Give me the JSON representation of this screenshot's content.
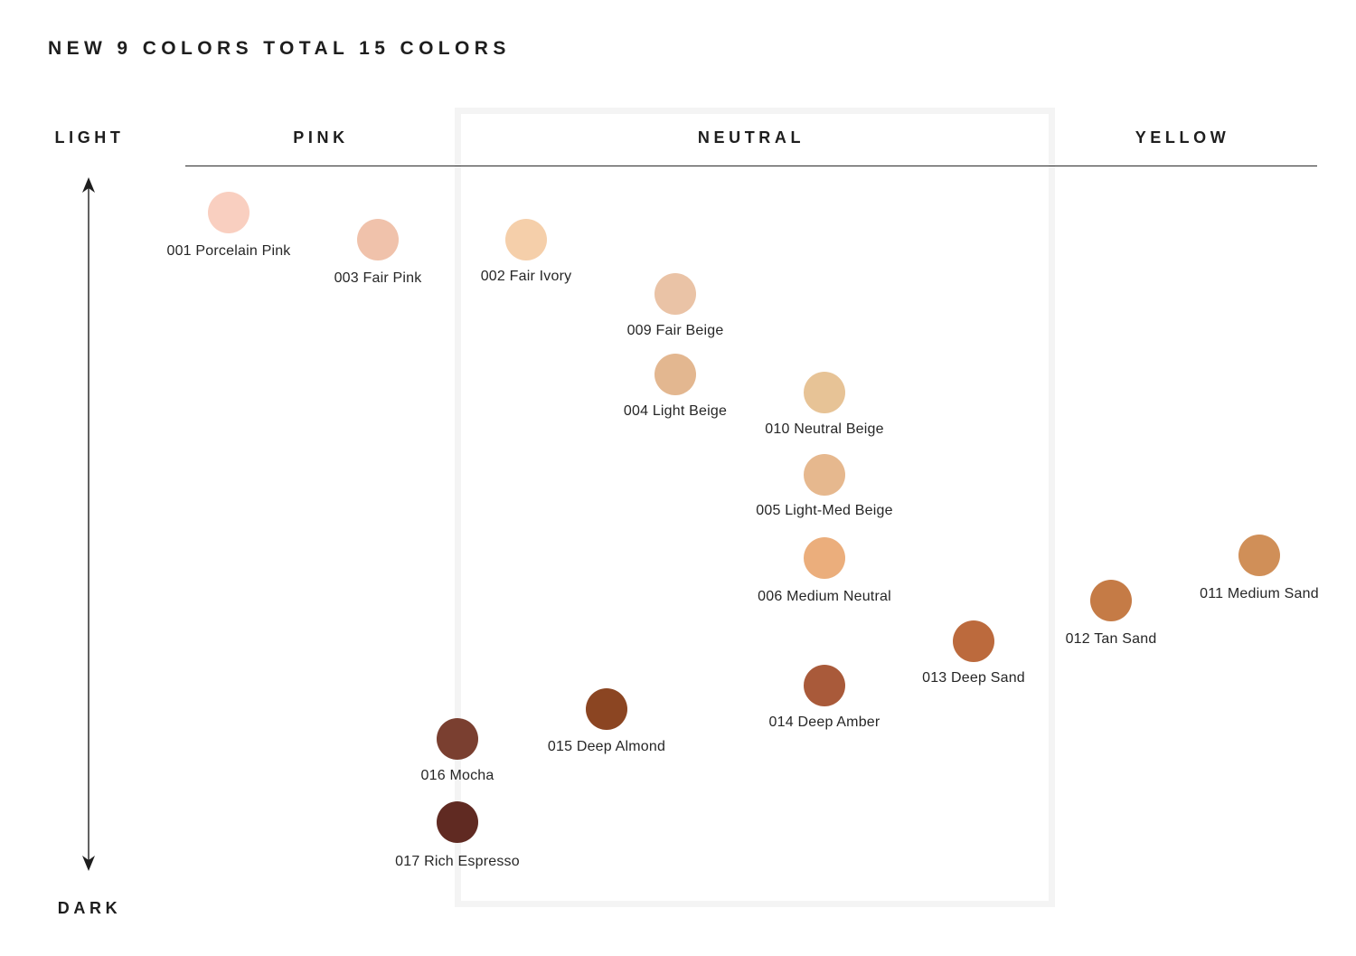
{
  "headline": "NEW 9 COLORS TOTAL 15 COLORS",
  "axis": {
    "top_label": "LIGHT",
    "bottom_label": "DARK"
  },
  "columns": {
    "pink": "PINK",
    "neutral": "NEUTRAL",
    "yellow": "YELLOW"
  },
  "shades": [
    {
      "label": "001 Porcelain Pink",
      "color": "#f9cfc0"
    },
    {
      "label": "003 Fair Pink",
      "color": "#f0c2ab"
    },
    {
      "label": "002 Fair Ivory",
      "color": "#f5cfaa"
    },
    {
      "label": "009 Fair Beige",
      "color": "#eac3a6"
    },
    {
      "label": "004 Light Beige",
      "color": "#e3b790"
    },
    {
      "label": "010 Neutral Beige",
      "color": "#e7c396"
    },
    {
      "label": "005 Light-Med Beige",
      "color": "#e6b88e"
    },
    {
      "label": "006 Medium Neutral",
      "color": "#ebae7c"
    },
    {
      "label": "011 Medium Sand",
      "color": "#d08f58"
    },
    {
      "label": "012 Tan Sand",
      "color": "#c57b46"
    },
    {
      "label": "013 Deep Sand",
      "color": "#bc6a3d"
    },
    {
      "label": "014 Deep Amber",
      "color": "#a95a3a"
    },
    {
      "label": "015 Deep Almond",
      "color": "#8b4522"
    },
    {
      "label": "016 Mocha",
      "color": "#7a3f30"
    },
    {
      "label": "017 Rich Espresso",
      "color": "#602a22"
    }
  ]
}
